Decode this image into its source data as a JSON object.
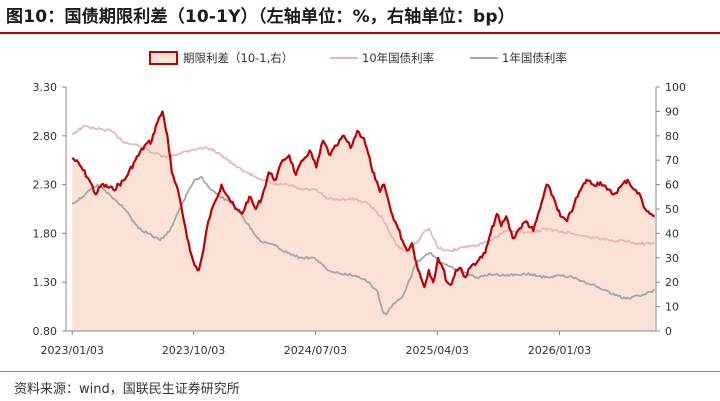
{
  "title": "图10：国债期限利差（10-1Y）（左轴单位：%，右轴单位：bp）",
  "source": "资料来源：wind，国联民生证券研究所",
  "colors": {
    "spread_line": "#c00000",
    "spread_fill": "#fbe2d6",
    "y10_line": "#e6b7b7",
    "y1_line": "#a6a6a6",
    "axis": "#888888",
    "title_rule": "#c00000"
  },
  "chart_data": {
    "type": "line",
    "legend_position": "top-center",
    "grid": false,
    "x_ticks": [
      "2023/01/03",
      "2023/10/03",
      "2024/07/03",
      "2025/04/03",
      "2026/01/03"
    ],
    "left_axis": {
      "ylim": [
        0.8,
        3.3
      ],
      "ticks": [
        "0.80",
        "1.30",
        "1.80",
        "2.30",
        "2.80",
        "3.30"
      ]
    },
    "right_axis": {
      "ylim": [
        0,
        100
      ],
      "ticks": [
        "0",
        "10",
        "20",
        "30",
        "40",
        "50",
        "60",
        "70",
        "80",
        "90",
        "100"
      ]
    },
    "series": [
      {
        "name": "期限利差（10-1,右）",
        "axis": "right",
        "style": "area",
        "points": [
          [
            "2023/01/03",
            71
          ],
          [
            "2023/01/20",
            68
          ],
          [
            "2023/02/10",
            62
          ],
          [
            "2023/02/25",
            56
          ],
          [
            "2023/03/10",
            60
          ],
          [
            "2023/04/05",
            58
          ],
          [
            "2023/05/01",
            62
          ],
          [
            "2023/05/25",
            70
          ],
          [
            "2023/06/15",
            76
          ],
          [
            "2023/07/01",
            78
          ],
          [
            "2023/07/10",
            84
          ],
          [
            "2023/07/25",
            90
          ],
          [
            "2023/08/05",
            80
          ],
          [
            "2023/08/15",
            65
          ],
          [
            "2023/09/01",
            55
          ],
          [
            "2023/09/15",
            42
          ],
          [
            "2023/09/25",
            33
          ],
          [
            "2023/10/05",
            27
          ],
          [
            "2023/10/15",
            25
          ],
          [
            "2023/10/25",
            33
          ],
          [
            "2023/11/05",
            45
          ],
          [
            "2023/11/20",
            53
          ],
          [
            "2023/12/05",
            60
          ],
          [
            "2023/12/20",
            55
          ],
          [
            "2024/01/05",
            50
          ],
          [
            "2024/01/20",
            48
          ],
          [
            "2024/02/05",
            55
          ],
          [
            "2024/02/20",
            50
          ],
          [
            "2024/03/05",
            55
          ],
          [
            "2024/03/20",
            65
          ],
          [
            "2024/04/05",
            62
          ],
          [
            "2024/04/20",
            70
          ],
          [
            "2024/05/05",
            72
          ],
          [
            "2024/05/20",
            64
          ],
          [
            "2024/06/05",
            70
          ],
          [
            "2024/06/20",
            74
          ],
          [
            "2024/07/05",
            67
          ],
          [
            "2024/07/20",
            78
          ],
          [
            "2024/08/05",
            72
          ],
          [
            "2024/08/20",
            76
          ],
          [
            "2024/09/05",
            80
          ],
          [
            "2024/09/20",
            75
          ],
          [
            "2024/10/05",
            82
          ],
          [
            "2024/10/20",
            79
          ],
          [
            "2024/11/05",
            68
          ],
          [
            "2024/11/15",
            62
          ],
          [
            "2024/11/25",
            57
          ],
          [
            "2024/12/05",
            60
          ],
          [
            "2024/12/20",
            49
          ],
          [
            "2025/01/05",
            42
          ],
          [
            "2025/01/15",
            37
          ],
          [
            "2025/01/25",
            33
          ],
          [
            "2025/02/05",
            36
          ],
          [
            "2025/02/15",
            28
          ],
          [
            "2025/02/25",
            22
          ],
          [
            "2025/03/05",
            18
          ],
          [
            "2025/03/15",
            25
          ],
          [
            "2025/03/25",
            20
          ],
          [
            "2025/04/05",
            30
          ],
          [
            "2025/04/15",
            26
          ],
          [
            "2025/04/25",
            20
          ],
          [
            "2025/05/05",
            19
          ],
          [
            "2025/05/15",
            25
          ],
          [
            "2025/05/25",
            26
          ],
          [
            "2025/06/05",
            22
          ],
          [
            "2025/06/20",
            27
          ],
          [
            "2025/07/05",
            29
          ],
          [
            "2025/07/20",
            32
          ],
          [
            "2025/08/01",
            40
          ],
          [
            "2025/08/15",
            48
          ],
          [
            "2025/08/25",
            43
          ],
          [
            "2025/09/05",
            47
          ],
          [
            "2025/09/20",
            38
          ],
          [
            "2025/10/05",
            42
          ],
          [
            "2025/10/20",
            45
          ],
          [
            "2025/11/05",
            41
          ],
          [
            "2025/11/20",
            50
          ],
          [
            "2025/12/05",
            60
          ],
          [
            "2025/12/20",
            55
          ],
          [
            "2026/01/05",
            47
          ],
          [
            "2026/01/20",
            45
          ],
          [
            "2026/02/05",
            52
          ],
          [
            "2026/02/20",
            58
          ],
          [
            "2026/03/05",
            62
          ],
          [
            "2026/03/20",
            60
          ],
          [
            "2026/04/05",
            61
          ],
          [
            "2026/04/20",
            58
          ],
          [
            "2026/05/05",
            56
          ],
          [
            "2026/05/20",
            59
          ],
          [
            "2026/06/05",
            62
          ],
          [
            "2026/06/20",
            58
          ],
          [
            "2026/07/05",
            55
          ],
          [
            "2026/07/15",
            50
          ],
          [
            "2026/07/25",
            48
          ],
          [
            "2026/08/05",
            47
          ]
        ]
      },
      {
        "name": "10年国债利率",
        "axis": "left",
        "style": "line",
        "points": [
          [
            "2023/01/03",
            2.82
          ],
          [
            "2023/02/01",
            2.9
          ],
          [
            "2023/03/01",
            2.87
          ],
          [
            "2023/04/01",
            2.85
          ],
          [
            "2023/05/01",
            2.73
          ],
          [
            "2023/06/01",
            2.7
          ],
          [
            "2023/07/01",
            2.63
          ],
          [
            "2023/08/01",
            2.58
          ],
          [
            "2023/09/01",
            2.62
          ],
          [
            "2023/10/01",
            2.66
          ],
          [
            "2023/11/01",
            2.68
          ],
          [
            "2023/12/01",
            2.62
          ],
          [
            "2024/01/01",
            2.5
          ],
          [
            "2024/02/01",
            2.42
          ],
          [
            "2024/03/01",
            2.36
          ],
          [
            "2024/04/01",
            2.3
          ],
          [
            "2024/05/01",
            2.3
          ],
          [
            "2024/06/01",
            2.25
          ],
          [
            "2024/07/01",
            2.25
          ],
          [
            "2024/08/01",
            2.15
          ],
          [
            "2024/09/01",
            2.15
          ],
          [
            "2024/10/01",
            2.15
          ],
          [
            "2024/11/01",
            2.1
          ],
          [
            "2024/12/01",
            1.95
          ],
          [
            "2025/01/01",
            1.68
          ],
          [
            "2025/01/20",
            1.62
          ],
          [
            "2025/02/15",
            1.7
          ],
          [
            "2025/03/01",
            1.8
          ],
          [
            "2025/03/15",
            1.85
          ],
          [
            "2025/04/05",
            1.65
          ],
          [
            "2025/05/01",
            1.62
          ],
          [
            "2025/06/01",
            1.66
          ],
          [
            "2025/07/01",
            1.68
          ],
          [
            "2025/08/01",
            1.72
          ],
          [
            "2025/09/01",
            1.82
          ],
          [
            "2025/10/01",
            1.83
          ],
          [
            "2025/11/01",
            1.8
          ],
          [
            "2025/12/01",
            1.85
          ],
          [
            "2026/01/01",
            1.82
          ],
          [
            "2026/02/01",
            1.8
          ],
          [
            "2026/03/01",
            1.77
          ],
          [
            "2026/04/01",
            1.75
          ],
          [
            "2026/05/01",
            1.73
          ],
          [
            "2026/06/01",
            1.72
          ],
          [
            "2026/07/01",
            1.7
          ],
          [
            "2026/08/05",
            1.69
          ]
        ]
      },
      {
        "name": "1年国债利率",
        "axis": "left",
        "style": "line",
        "points": [
          [
            "2023/01/03",
            2.1
          ],
          [
            "2023/02/01",
            2.2
          ],
          [
            "2023/03/01",
            2.3
          ],
          [
            "2023/04/01",
            2.18
          ],
          [
            "2023/05/01",
            2.05
          ],
          [
            "2023/06/01",
            1.85
          ],
          [
            "2023/07/01",
            1.78
          ],
          [
            "2023/07/20",
            1.73
          ],
          [
            "2023/08/10",
            1.82
          ],
          [
            "2023/09/01",
            2.05
          ],
          [
            "2023/09/20",
            2.22
          ],
          [
            "2023/10/05",
            2.35
          ],
          [
            "2023/10/20",
            2.38
          ],
          [
            "2023/11/05",
            2.28
          ],
          [
            "2023/12/01",
            2.18
          ],
          [
            "2024/01/01",
            2.1
          ],
          [
            "2024/02/01",
            1.9
          ],
          [
            "2024/03/01",
            1.72
          ],
          [
            "2024/04/01",
            1.68
          ],
          [
            "2024/05/01",
            1.6
          ],
          [
            "2024/06/01",
            1.55
          ],
          [
            "2024/07/01",
            1.55
          ],
          [
            "2024/08/01",
            1.42
          ],
          [
            "2024/09/01",
            1.38
          ],
          [
            "2024/10/01",
            1.37
          ],
          [
            "2024/11/01",
            1.3
          ],
          [
            "2024/11/20",
            1.2
          ],
          [
            "2024/12/01",
            1.0
          ],
          [
            "2024/12/10",
            0.97
          ],
          [
            "2024/12/25",
            1.08
          ],
          [
            "2025/01/15",
            1.15
          ],
          [
            "2025/02/15",
            1.5
          ],
          [
            "2025/03/01",
            1.55
          ],
          [
            "2025/03/20",
            1.6
          ],
          [
            "2025/04/10",
            1.5
          ],
          [
            "2025/05/01",
            1.46
          ],
          [
            "2025/06/01",
            1.4
          ],
          [
            "2025/07/01",
            1.35
          ],
          [
            "2025/08/01",
            1.38
          ],
          [
            "2025/09/01",
            1.37
          ],
          [
            "2025/10/01",
            1.38
          ],
          [
            "2025/11/01",
            1.38
          ],
          [
            "2025/12/01",
            1.35
          ],
          [
            "2026/01/01",
            1.37
          ],
          [
            "2026/02/01",
            1.35
          ],
          [
            "2026/03/01",
            1.3
          ],
          [
            "2026/04/01",
            1.25
          ],
          [
            "2026/05/01",
            1.18
          ],
          [
            "2026/06/01",
            1.13
          ],
          [
            "2026/07/01",
            1.16
          ],
          [
            "2026/08/05",
            1.22
          ]
        ]
      }
    ]
  }
}
